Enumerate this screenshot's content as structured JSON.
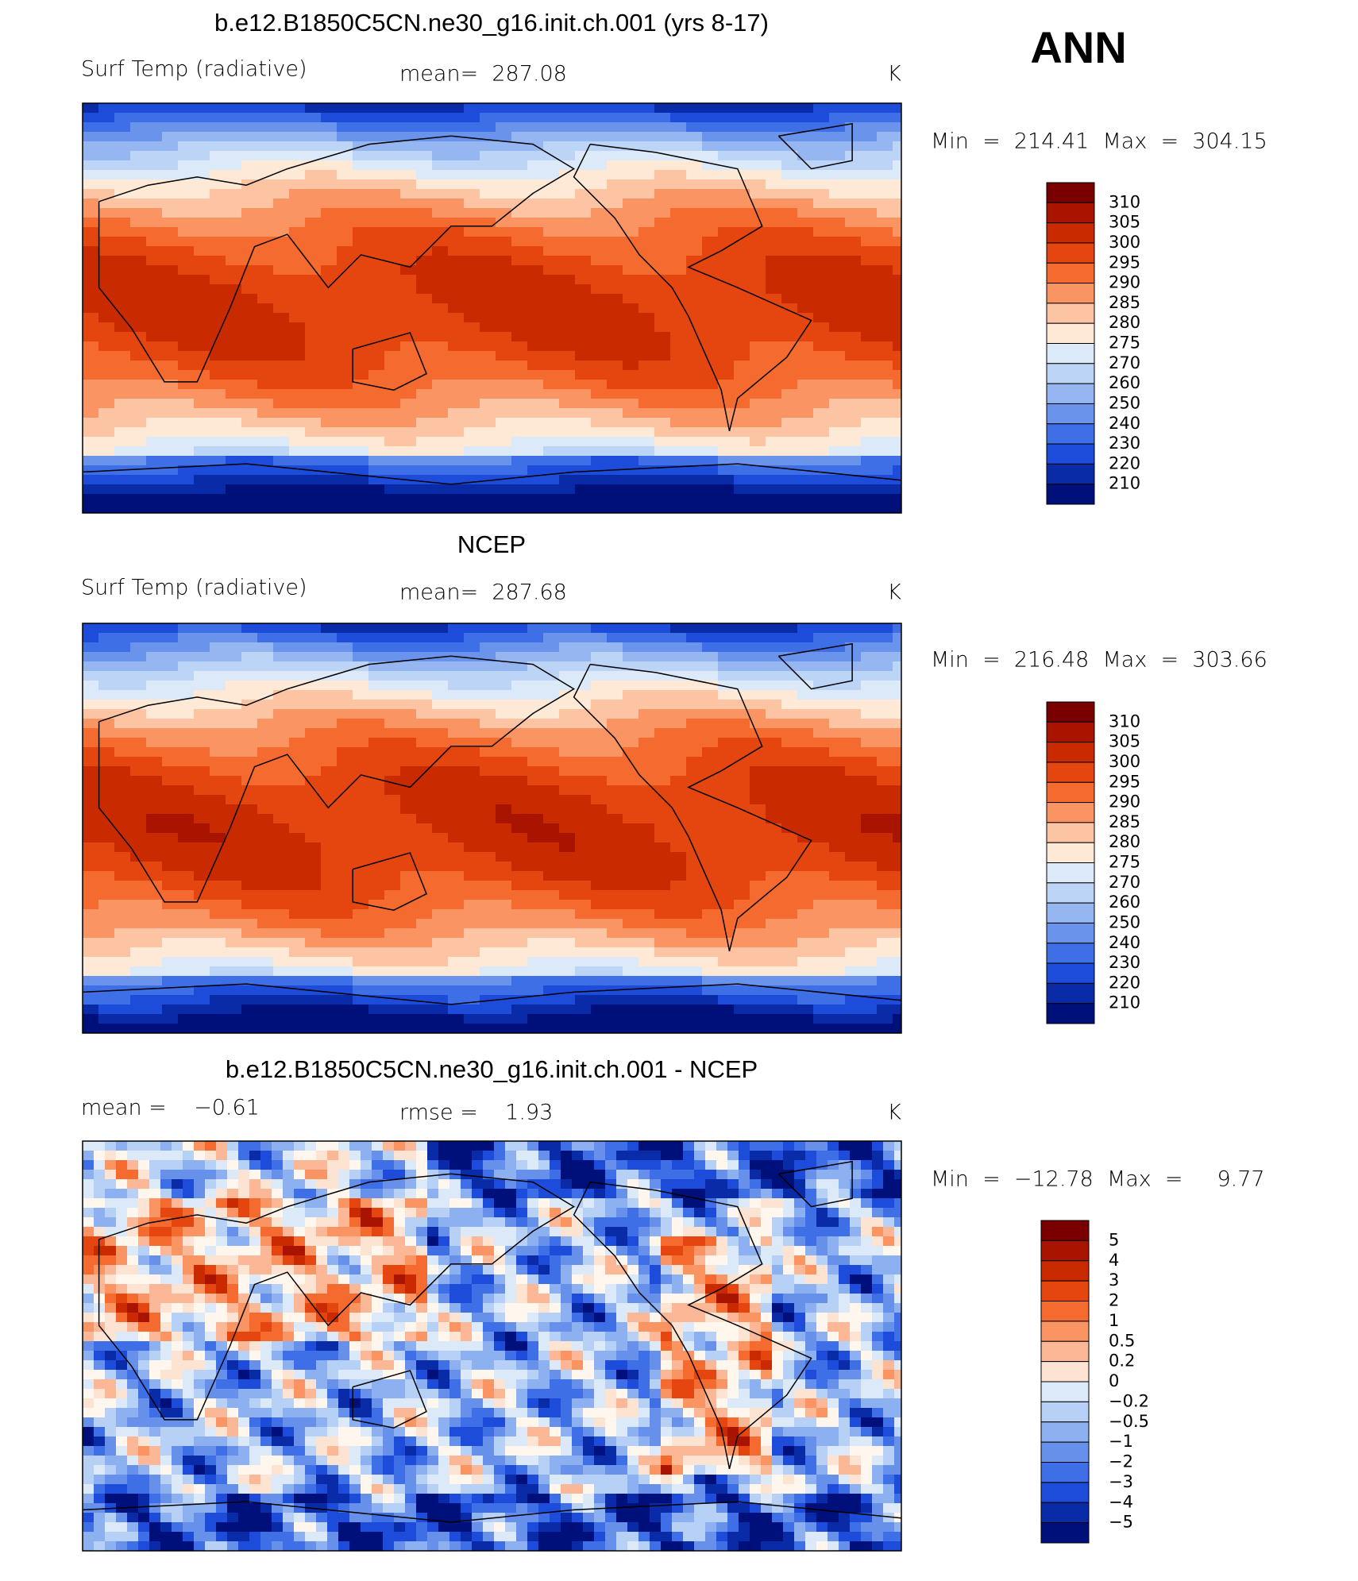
{
  "header": {
    "title": "ANN"
  },
  "panels": [
    {
      "title": "b.e12.B1850C5CN.ne30_g16.init.ch.001 (yrs 8-17)",
      "left": "Surf Temp (radiative)",
      "middle": "mean=  287.08",
      "units": "K",
      "range": "Min  =  214.41  Max  =  304.15",
      "colorbar": [
        "310",
        "305",
        "300",
        "295",
        "290",
        "285",
        "280",
        "275",
        "270",
        "260",
        "250",
        "240",
        "230",
        "220",
        "210"
      ]
    },
    {
      "title": "NCEP",
      "left": "Surf Temp (radiative)",
      "middle": "mean=  287.68",
      "units": "K",
      "range": "Min  =  216.48  Max  =  303.66",
      "colorbar": [
        "310",
        "305",
        "300",
        "295",
        "290",
        "285",
        "280",
        "275",
        "270",
        "260",
        "250",
        "240",
        "230",
        "220",
        "210"
      ]
    },
    {
      "title": "b.e12.B1850C5CN.ne30_g16.init.ch.001 - NCEP",
      "left": "mean =    −0.61",
      "middle": "rmse =    1.93",
      "units": "K",
      "range": "Min  =  −12.78  Max  =     9.77",
      "colorbar": [
        "5",
        "4",
        "3",
        "2",
        "1",
        "0.5",
        "0.2",
        "0",
        "−0.2",
        "−0.5",
        "−1",
        "−2",
        "−3",
        "−4",
        "−5"
      ]
    }
  ]
}
